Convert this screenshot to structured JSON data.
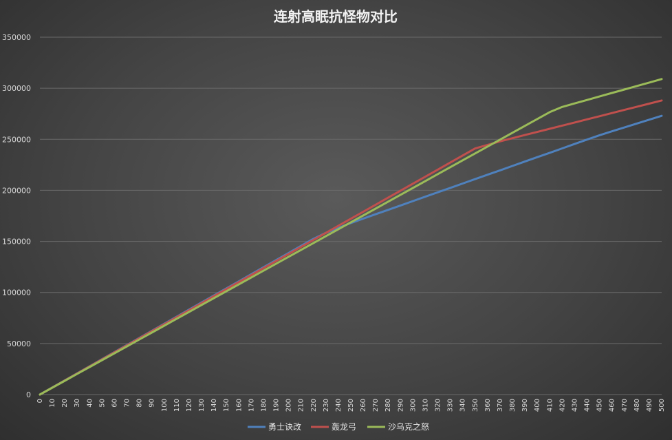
{
  "chart_data": {
    "type": "line",
    "title": "连射高眠抗怪物对比",
    "xlabel": "",
    "ylabel": "",
    "ylim": [
      0,
      350000
    ],
    "yticks": [
      0,
      50000,
      100000,
      150000,
      200000,
      250000,
      300000,
      350000
    ],
    "x": [
      0,
      10,
      20,
      30,
      40,
      50,
      60,
      70,
      80,
      90,
      100,
      110,
      120,
      130,
      140,
      150,
      160,
      170,
      180,
      190,
      200,
      210,
      220,
      230,
      240,
      250,
      260,
      270,
      280,
      290,
      300,
      310,
      320,
      330,
      340,
      350,
      360,
      370,
      380,
      390,
      400,
      410,
      420,
      430,
      440,
      450,
      460,
      470,
      480,
      490,
      500
    ],
    "grid": true,
    "legend_position": "bottom",
    "series": [
      {
        "name": "勇士诀改",
        "color": "#4f81bd",
        "anchors": [
          [
            0,
            0
          ],
          [
            225,
            156000
          ],
          [
            250,
            168000
          ],
          [
            450,
            254000
          ],
          [
            500,
            273000
          ]
        ]
      },
      {
        "name": "轰龙弓",
        "color": "#c0504d",
        "anchors": [
          [
            0,
            0
          ],
          [
            350,
            241000
          ],
          [
            370,
            248000
          ],
          [
            500,
            288000
          ]
        ]
      },
      {
        "name": "沙乌克之怒",
        "color": "#9bbb59",
        "anchors": [
          [
            0,
            0
          ],
          [
            415,
            280000
          ],
          [
            500,
            309000
          ]
        ]
      }
    ]
  }
}
